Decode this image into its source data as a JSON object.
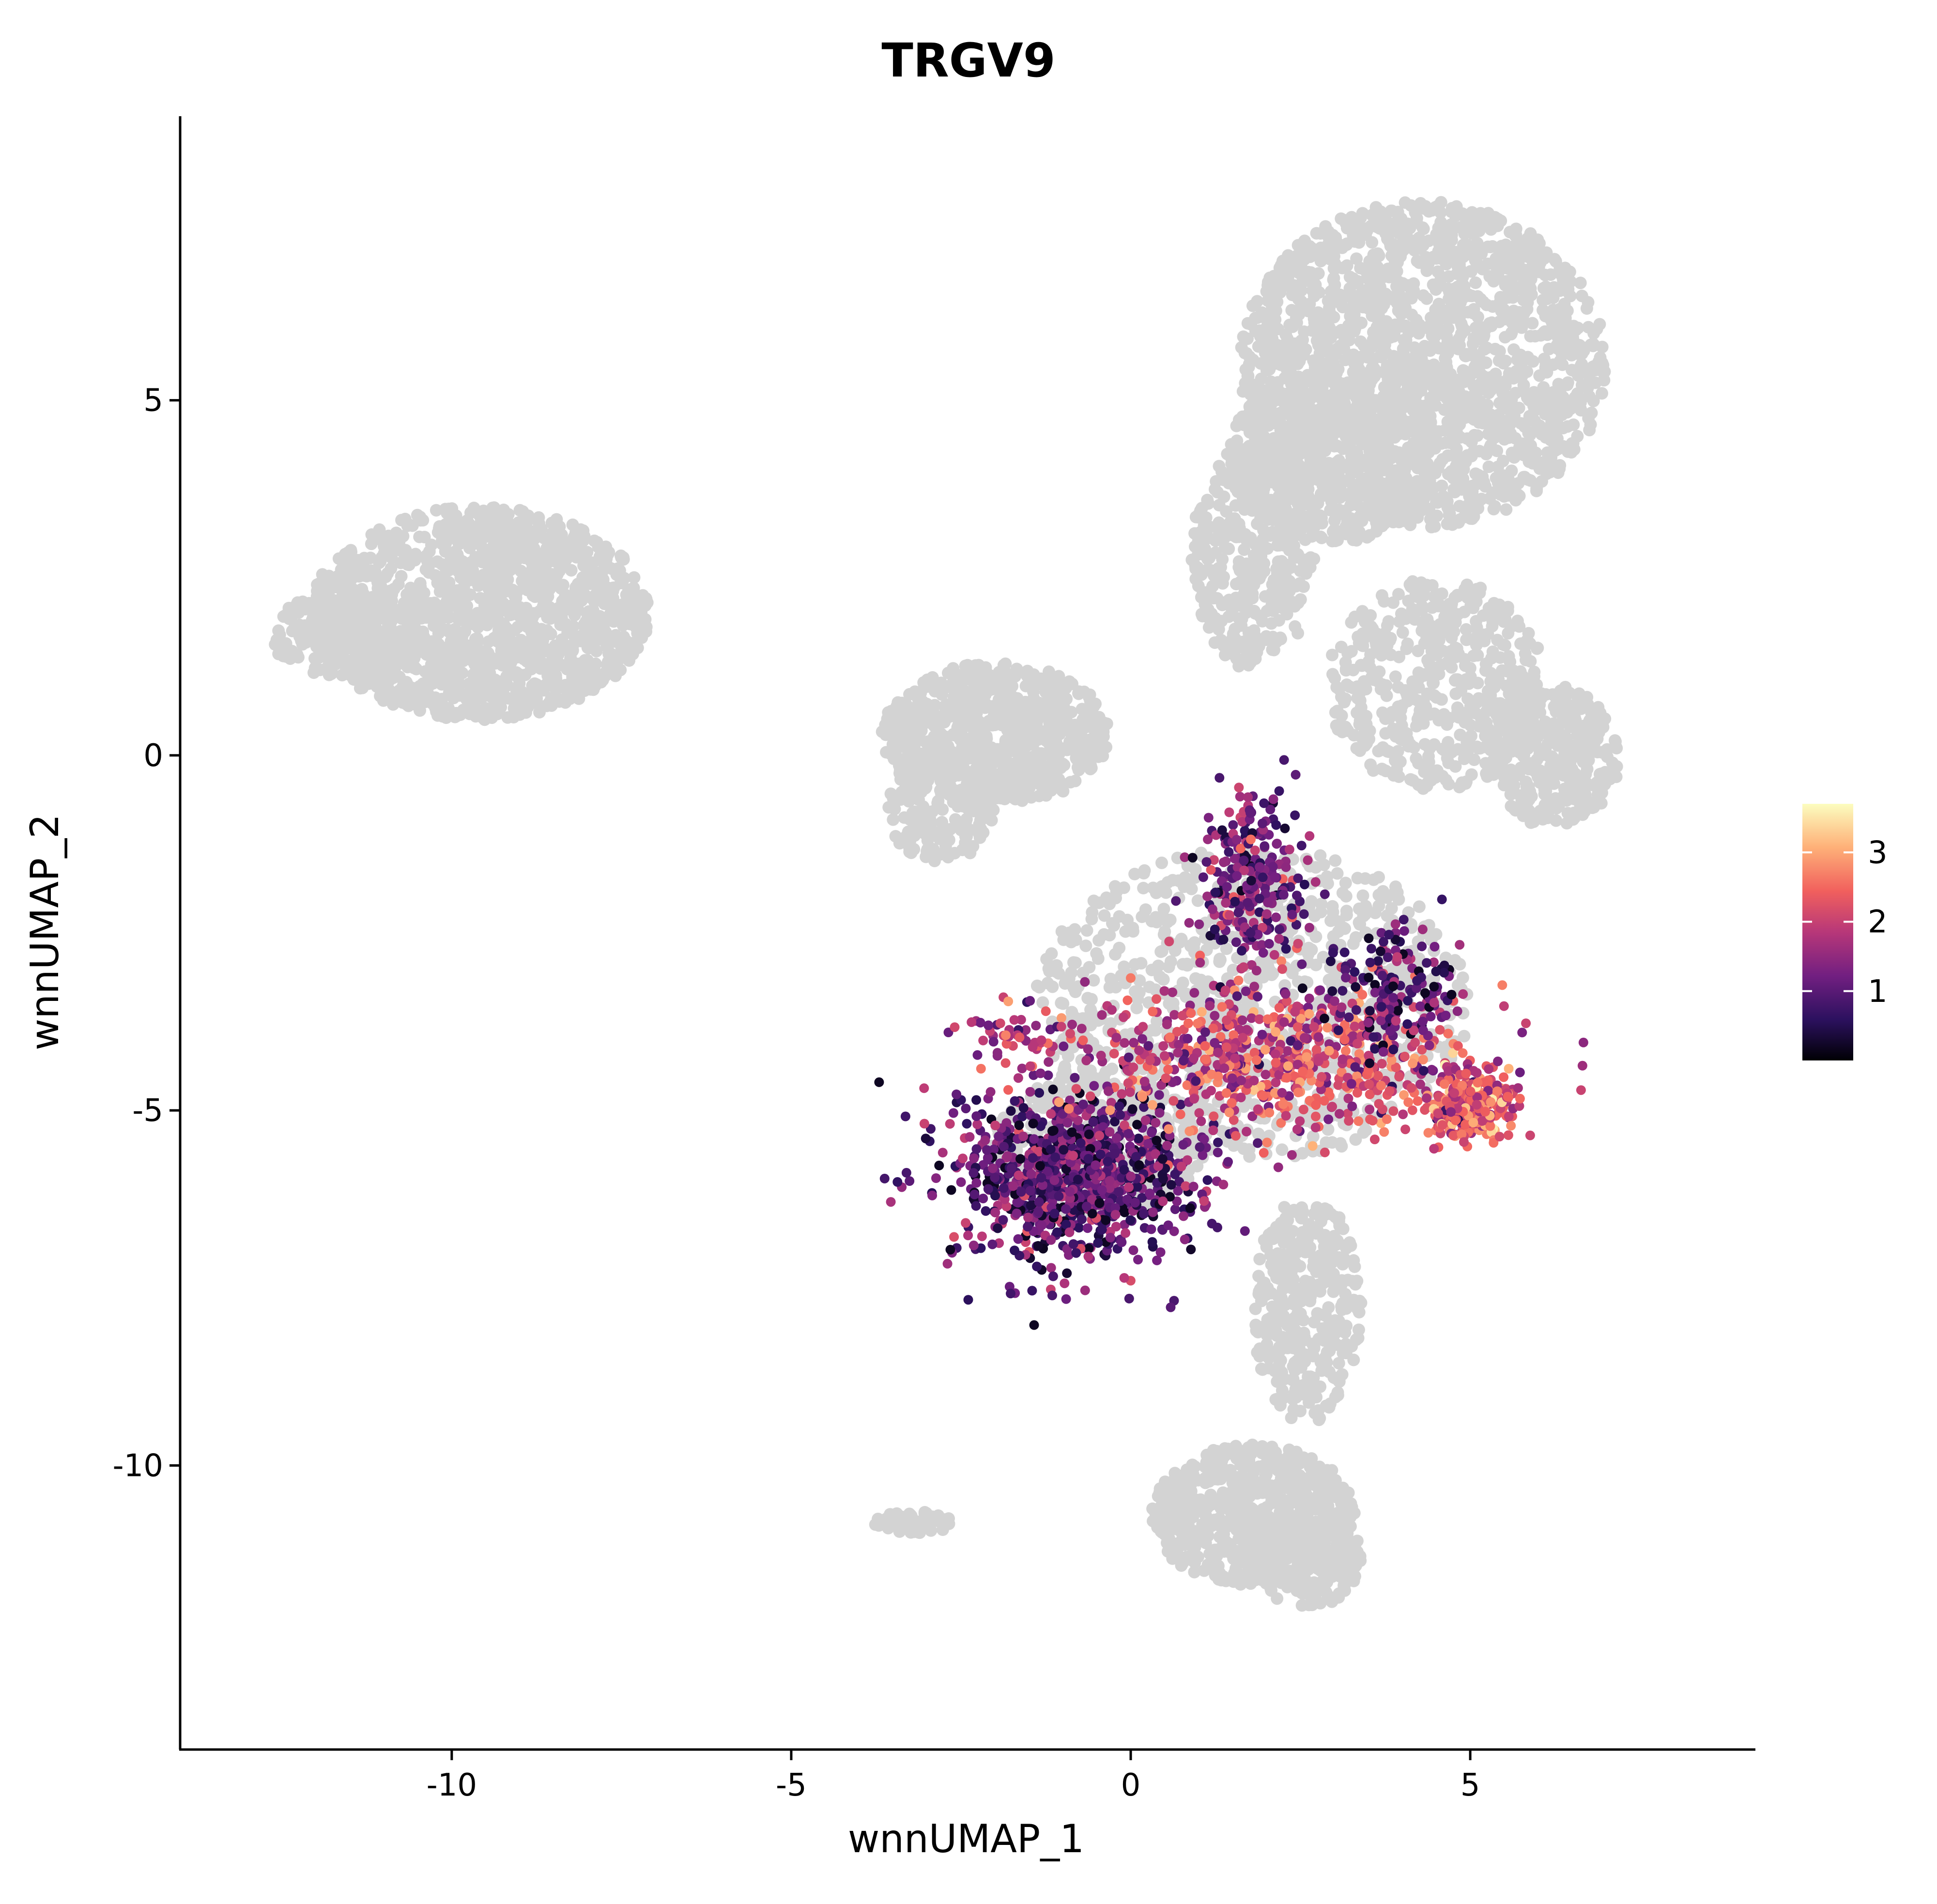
{
  "chart_data": {
    "type": "scatter",
    "title": "TRGV9",
    "xlabel": "wnnUMAP_1",
    "ylabel": "wnnUMAP_2",
    "xlim": [
      -14.0,
      9.2
    ],
    "ylim": [
      -14.0,
      9.0
    ],
    "x_ticks": [
      {
        "value": -10,
        "label": "-10"
      },
      {
        "value": -5,
        "label": "-5"
      },
      {
        "value": 0,
        "label": "0"
      },
      {
        "value": 5,
        "label": "5"
      }
    ],
    "y_ticks": [
      {
        "value": 5,
        "label": "5"
      },
      {
        "value": 0,
        "label": "0"
      },
      {
        "value": -5,
        "label": "-5"
      },
      {
        "value": -10,
        "label": "-10"
      }
    ],
    "grid": false,
    "legend": {
      "placement": "right",
      "type": "colorbar",
      "min": 0,
      "max": 3.7,
      "ticks": [
        {
          "value": 1,
          "label": "1"
        },
        {
          "value": 2,
          "label": "2"
        },
        {
          "value": 3,
          "label": "3"
        }
      ]
    },
    "colors": {
      "background_points": "#d3d3d3",
      "colormap": [
        "#000004",
        "#2c115f",
        "#721f81",
        "#b73779",
        "#f1605d",
        "#feb078",
        "#fcfdbf"
      ]
    },
    "background_regions": [
      {
        "name": "top-right cluster",
        "x_range": [
          1.0,
          7.1
        ],
        "y_range": [
          0.5,
          7.8
        ]
      },
      {
        "name": "left cluster",
        "x_range": [
          -12.8,
          -6.5
        ],
        "y_range": [
          -1.6,
          3.5
        ]
      },
      {
        "name": "middle-left cluster",
        "x_range": [
          -4.3,
          -0.3
        ],
        "y_range": [
          -1.8,
          1.6
        ]
      },
      {
        "name": "central bridge",
        "x_range": [
          -3.3,
          5.3
        ],
        "y_range": [
          -7.5,
          -0.5
        ]
      },
      {
        "name": "lower stem",
        "x_range": [
          1.6,
          3.8
        ],
        "y_range": [
          -9.8,
          -6.0
        ]
      },
      {
        "name": "bottom cluster",
        "x_range": [
          -0.3,
          3.3
        ],
        "y_range": [
          -12.1,
          -9.5
        ]
      },
      {
        "name": "small bottom-left strand",
        "x_range": [
          -3.8,
          -2.6
        ],
        "y_range": [
          -11.1,
          -10.5
        ]
      }
    ],
    "expressing_clusters": [
      {
        "name": "lower-left dense arm",
        "center": [
          -0.8,
          -5.9
        ],
        "count": 950,
        "mean_expression": 1.0
      },
      {
        "name": "central mixed band",
        "center": [
          2.2,
          -4.3
        ],
        "count": 650,
        "mean_expression": 2.1
      },
      {
        "name": "right dense blob",
        "center": [
          5.0,
          -4.9
        ],
        "count": 300,
        "mean_expression": 2.3
      },
      {
        "name": "upper-middle group",
        "center": [
          1.8,
          -1.8
        ],
        "count": 260,
        "mean_expression": 1.3
      },
      {
        "name": "right arm to blob",
        "center": [
          3.9,
          -3.3
        ],
        "count": 160,
        "mean_expression": 0.9
      },
      {
        "name": "left streak",
        "center": [
          -1.6,
          -4.0
        ],
        "count": 60,
        "mean_expression": 1.7
      }
    ]
  }
}
